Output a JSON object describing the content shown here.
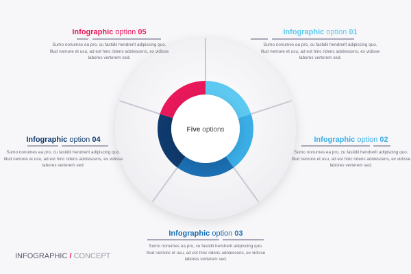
{
  "center_label": {
    "bold": "Five",
    "rest": "options"
  },
  "options": [
    {
      "prefix": "Infographic",
      "word": "option",
      "number": "01",
      "color": "#5dc9f1",
      "body": "Sumo nonumes ea pro, cu fastidii hendrerit adipiscing quo. Illud nemore et usu, ad est hinc ridens adolescens, ex vidisse labores verterem sed."
    },
    {
      "prefix": "Infographic",
      "word": "option",
      "number": "02",
      "color": "#3aaee6",
      "body": "Sumo nonumes ea pro, cu fastidii hendrerit adipiscing quo. Illud nemore et usu, ad est hinc ridens adolescens, ex vidisse labores verterem sed."
    },
    {
      "prefix": "Infographic",
      "word": "option",
      "number": "03",
      "color": "#1b6fb3",
      "body": "Sumo nonumes ea pro, cu fastidii hendrerit adipiscing quo. Illud nemore et usu, ad est hinc ridens adolescens, ex vidisse labores verterem sed."
    },
    {
      "prefix": "Infographic",
      "word": "option",
      "number": "04",
      "color": "#0f3a6d",
      "body": "Sumo nonumes ea pro, cu fastidii hendrerit adipiscing quo. Illud nemore et usu, ad est hinc ridens adolescens, ex vidisse labores verterem sed."
    },
    {
      "prefix": "Infographic",
      "word": "option",
      "number": "05",
      "color": "#e8185a",
      "body": "Sumo nonumes ea pro, cu fastidii hendrerit adipiscing quo. Illud nemore et usu, ad est hinc ridens adolescens, ex vidisse labores verterem sed."
    }
  ],
  "brand": {
    "left": "INFOGRAPHIC",
    "slash": "/",
    "right": "CONCEPT"
  }
}
